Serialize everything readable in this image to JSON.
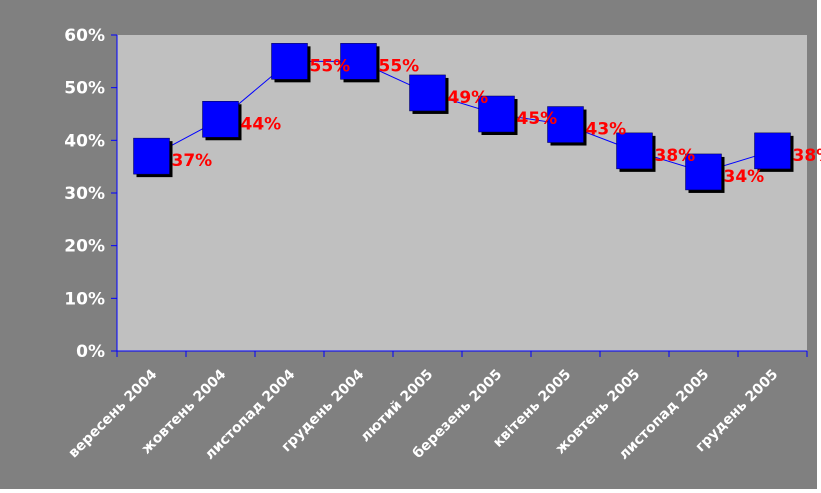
{
  "chart_data": {
    "type": "line",
    "categories": [
      "вересень 2004",
      "жовтень 2004",
      "листопад 2004",
      "грудень 2004",
      "лютий 2005",
      "березень 2005",
      "квітень 2005",
      "жовтень 2005",
      "листопад 2005",
      "грудень 2005"
    ],
    "series": [
      {
        "values": [
          37,
          44,
          55,
          55,
          49,
          45,
          43,
          38,
          34,
          38
        ]
      }
    ],
    "data_labels": [
      "37%",
      "44%",
      "55%",
      "55%",
      "49%",
      "45%",
      "43%",
      "38%",
      "34%",
      "38%"
    ],
    "y_ticks": [
      "0%",
      "10%",
      "20%",
      "30%",
      "40%",
      "50%",
      "60%"
    ],
    "ylim": [
      0,
      60
    ],
    "grid": false,
    "legend": "none",
    "colors": {
      "outer_background": "#808080",
      "plot_background": "#c0c0c0",
      "axis": "#0000ff",
      "line": "#0000ff",
      "marker": "#0000ff",
      "data_label": "#ff0000",
      "tick_label": "#ffffff"
    }
  }
}
